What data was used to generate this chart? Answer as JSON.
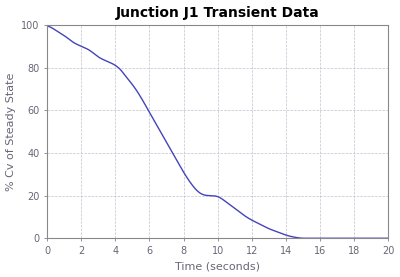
{
  "title": "Junction J1 Transient Data",
  "xlabel": "Time (seconds)",
  "ylabel": "% Cv of Steady State",
  "xlim": [
    0,
    20
  ],
  "ylim": [
    0,
    100
  ],
  "xticks": [
    0,
    2,
    4,
    6,
    8,
    10,
    12,
    14,
    16,
    18,
    20
  ],
  "yticks": [
    0,
    20,
    40,
    60,
    80,
    100
  ],
  "line_color": "#4444bb",
  "line_width": 1.0,
  "background_color": "#ffffff",
  "grid_color": "#bbbbcc",
  "title_fontsize": 10,
  "label_fontsize": 8,
  "tick_fontsize": 7,
  "curve_points_x": [
    0,
    0.3,
    0.6,
    1.0,
    1.5,
    2.0,
    2.5,
    3.0,
    3.5,
    4.0,
    4.3,
    4.6,
    5.0,
    5.5,
    6.0,
    6.5,
    7.0,
    7.5,
    8.0,
    8.5,
    9.0,
    9.5,
    10.0,
    10.5,
    11.0,
    11.5,
    12.0,
    12.5,
    13.0,
    13.5,
    14.0,
    14.5,
    15.0,
    15.5,
    16.0,
    17.0,
    18.0,
    19.0,
    20.0
  ],
  "curve_points_y": [
    99.5,
    98.5,
    97,
    95,
    92,
    90,
    88,
    85,
    83,
    81,
    79,
    76,
    72,
    66,
    59,
    52,
    45,
    38,
    31,
    25,
    21,
    20,
    19.5,
    17,
    14,
    11,
    8.5,
    6.5,
    4.5,
    3.0,
    1.5,
    0.5,
    0,
    0,
    0,
    0,
    0,
    0,
    0
  ],
  "spine_color": "#888888",
  "tick_color": "#666677",
  "label_color": "#666677"
}
